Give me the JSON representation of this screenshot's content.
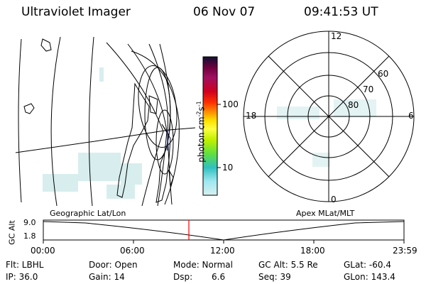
{
  "header": {
    "instrument": "Ultraviolet Imager",
    "date": "06 Nov 07",
    "time": "09:41:53 UT"
  },
  "colorbar": {
    "unit": "photon cm",
    "unit_exp1": "-2",
    "unit_mid": "s",
    "unit_exp2": "-1",
    "tick_100": "100",
    "tick_10": "10",
    "colors": [
      "#101030",
      "#700040",
      "#a01060",
      "#d00020",
      "#ff3000",
      "#ff9000",
      "#ffe000",
      "#ffff40",
      "#c0f000",
      "#60e040",
      "#30c0c0",
      "#a0e8f0",
      "#d8f0f0"
    ]
  },
  "polar_plot": {
    "mlt_top": "12",
    "mlt_left": "18",
    "mlt_right": "6",
    "mlt_bottom": "0",
    "lat_60": "60",
    "lat_70": "70",
    "lat_80": "80"
  },
  "timeline": {
    "left_label": "Geographic Lat/Lon",
    "right_label": "Apex MLat/MLT",
    "yaxis_title": "GC Alt",
    "y_top": "9.0",
    "y_bottom": "1.8",
    "time_ticks": [
      "00:00",
      "06:00",
      "12:00",
      "18:00",
      "23:59"
    ],
    "marker_color": "#ff0000"
  },
  "status": {
    "filter": "Flt: LBHL",
    "ip": "IP: 36.0",
    "door": "Door: Open",
    "gain": "Gain: 14",
    "mode": "Mode: Normal",
    "dsp_label": "Dsp:",
    "dsp_value": "6.6",
    "gc_alt": "GC Alt: 5.5 Re",
    "seq": "Seq: 39",
    "glat": "GLat: -60.4",
    "glon": "GLon: 143.4"
  }
}
